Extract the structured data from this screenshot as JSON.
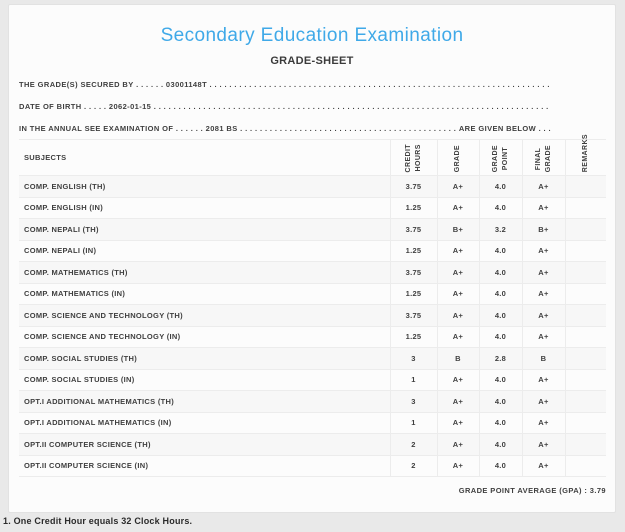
{
  "page": {
    "title": "Secondary Education Examination",
    "subtitle": "GRADE-SHEET",
    "title_color": "#3fa9e8"
  },
  "info_lines": [
    {
      "label": "THE GRADE(S) SECURED BY",
      "leader": " . . . . . . ",
      "value": "03001148T",
      "filler": " . . . . . . . . . . . . . . . . . . . . . . . . . . . . . . . . . . . . . . . . . . . . . . . . . . . . . . . . . . . . . . . . . . . . . . . . . . . . . . . .",
      "tail": ""
    },
    {
      "label": "DATE OF BIRTH",
      "leader": " . . . . . ",
      "value": "2062-01-15",
      "filler": " . . . . . . . . . . . . . . . . . . . . . . . . . . . . . . . . . . . . . . . . . . . . . . . . . . . . . . . . . . . . . . . . . . . . . . . . . . . . . . . .",
      "tail": ""
    },
    {
      "label": "IN THE ANNUAL SEE EXAMINATION OF",
      "leader": " . . . . . . ",
      "value": "2081 BS",
      "filler": " . . . . . . . . . . . . . . . . . . . . . . . . . . . . . . . . . . . . . . . . . . . . . . . . . . . . . . . . . . . . . . . . . . . . . . . . . . . . . . . .",
      "tail": " ARE GIVEN BELOW . . ."
    }
  ],
  "table": {
    "headers": {
      "subjects": "SUBJECTS",
      "credit_hours": "CREDIT\nHOURS",
      "grade": "GRADE",
      "grade_point": "GRADE\nPOINT",
      "final_grade": "FINAL\nGRADE",
      "remarks": "REMARKS"
    },
    "rows": [
      {
        "subject": "COMP. ENGLISH (TH)",
        "credit": "3.75",
        "grade": "A+",
        "point": "4.0",
        "final": "A+",
        "remarks": ""
      },
      {
        "subject": "COMP. ENGLISH (IN)",
        "credit": "1.25",
        "grade": "A+",
        "point": "4.0",
        "final": "A+",
        "remarks": ""
      },
      {
        "subject": "COMP. NEPALI (TH)",
        "credit": "3.75",
        "grade": "B+",
        "point": "3.2",
        "final": "B+",
        "remarks": ""
      },
      {
        "subject": "COMP. NEPALI (IN)",
        "credit": "1.25",
        "grade": "A+",
        "point": "4.0",
        "final": "A+",
        "remarks": ""
      },
      {
        "subject": "COMP. MATHEMATICS (TH)",
        "credit": "3.75",
        "grade": "A+",
        "point": "4.0",
        "final": "A+",
        "remarks": ""
      },
      {
        "subject": "COMP. MATHEMATICS (IN)",
        "credit": "1.25",
        "grade": "A+",
        "point": "4.0",
        "final": "A+",
        "remarks": ""
      },
      {
        "subject": "COMP. SCIENCE AND TECHNOLOGY (TH)",
        "credit": "3.75",
        "grade": "A+",
        "point": "4.0",
        "final": "A+",
        "remarks": ""
      },
      {
        "subject": "COMP. SCIENCE AND TECHNOLOGY (IN)",
        "credit": "1.25",
        "grade": "A+",
        "point": "4.0",
        "final": "A+",
        "remarks": ""
      },
      {
        "subject": "COMP. SOCIAL STUDIES (TH)",
        "credit": "3",
        "grade": "B",
        "point": "2.8",
        "final": "B",
        "remarks": ""
      },
      {
        "subject": "COMP. SOCIAL STUDIES (IN)",
        "credit": "1",
        "grade": "A+",
        "point": "4.0",
        "final": "A+",
        "remarks": ""
      },
      {
        "subject": "OPT.I ADDITIONAL MATHEMATICS (TH)",
        "credit": "3",
        "grade": "A+",
        "point": "4.0",
        "final": "A+",
        "remarks": ""
      },
      {
        "subject": "OPT.I ADDITIONAL MATHEMATICS (IN)",
        "credit": "1",
        "grade": "A+",
        "point": "4.0",
        "final": "A+",
        "remarks": ""
      },
      {
        "subject": "OPT.II COMPUTER SCIENCE (TH)",
        "credit": "2",
        "grade": "A+",
        "point": "4.0",
        "final": "A+",
        "remarks": ""
      },
      {
        "subject": "OPT.II COMPUTER SCIENCE (IN)",
        "credit": "2",
        "grade": "A+",
        "point": "4.0",
        "final": "A+",
        "remarks": ""
      }
    ]
  },
  "summary": {
    "gpa_label": "GRADE POINT AVERAGE (GPA) : ",
    "gpa_value": "3.79"
  },
  "footer": {
    "note": "1. One Credit Hour equals 32 Clock Hours."
  }
}
